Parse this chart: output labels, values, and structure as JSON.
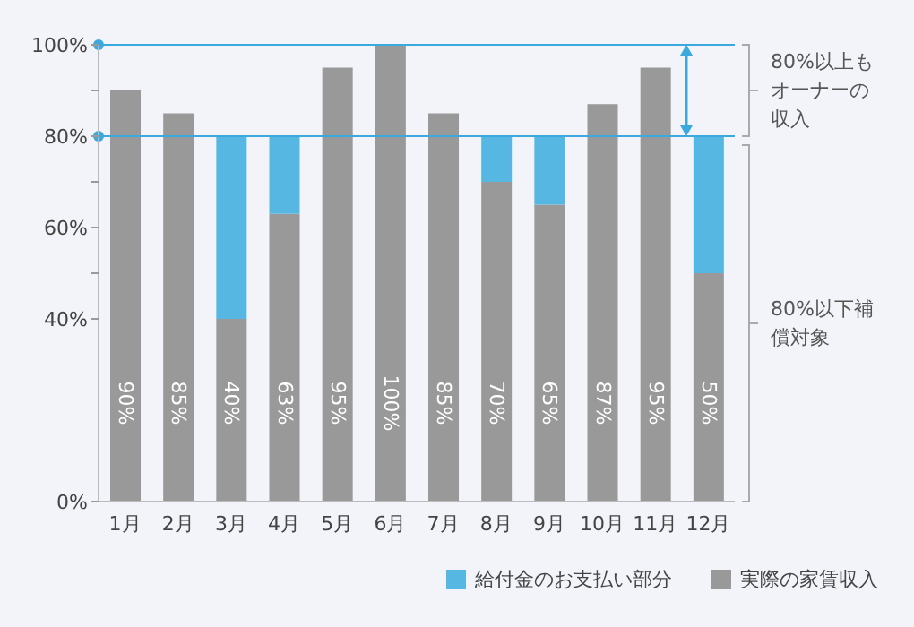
{
  "chart_data": {
    "type": "bar",
    "stacked": true,
    "categories": [
      "1月",
      "2月",
      "3月",
      "4月",
      "5月",
      "6月",
      "7月",
      "8月",
      "9月",
      "10月",
      "11月",
      "12月"
    ],
    "series": [
      {
        "name": "実際の家賃収入",
        "color": "#999999",
        "values": [
          90,
          85,
          40,
          63,
          95,
          100,
          85,
          70,
          65,
          87,
          95,
          50
        ],
        "value_labels": [
          "90%",
          "85%",
          "40%",
          "63%",
          "95%",
          "100%",
          "85%",
          "70%",
          "65%",
          "87%",
          "95%",
          "50%"
        ]
      },
      {
        "name": "給付金のお支払い部分",
        "color": "#56b7e3",
        "values": [
          0,
          0,
          40,
          17,
          0,
          0,
          0,
          10,
          15,
          0,
          0,
          30
        ]
      }
    ],
    "ylim": [
      0,
      100
    ],
    "yticks": [
      {
        "value": 0,
        "label": "0%"
      },
      {
        "value": 40,
        "label": "40%"
      },
      {
        "value": 50,
        "label": null
      },
      {
        "value": 60,
        "label": "60%"
      },
      {
        "value": 70,
        "label": null
      },
      {
        "value": 80,
        "label": "80%"
      },
      {
        "value": 90,
        "label": null
      },
      {
        "value": 100,
        "label": "100%"
      }
    ],
    "ref_lines": [
      {
        "axis": "y",
        "value": 100,
        "color": "#3aa9de"
      },
      {
        "axis": "y",
        "value": 80,
        "color": "#3aa9de"
      }
    ],
    "annotations": [
      "80%以上もオーナーの収入",
      "80%以下補償対象"
    ],
    "legend": "bottom right",
    "grid": false
  }
}
